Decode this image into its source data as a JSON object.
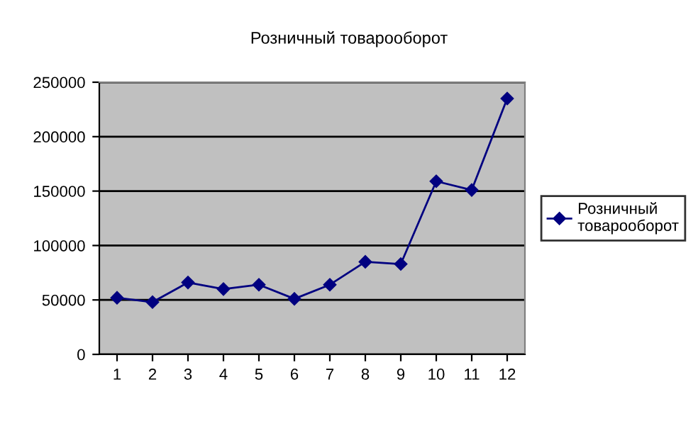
{
  "chart_data": {
    "type": "line",
    "title": "Розничный товарооборот",
    "categories": [
      "1",
      "2",
      "3",
      "4",
      "5",
      "6",
      "7",
      "8",
      "9",
      "10",
      "11",
      "12"
    ],
    "series": [
      {
        "name": "Розничный товарооборот",
        "color": "#000080",
        "values": [
          52000,
          48000,
          66000,
          60000,
          64000,
          51000,
          64000,
          85000,
          83000,
          159000,
          151000,
          235000
        ]
      }
    ],
    "ylim": [
      0,
      250000
    ],
    "yticks": [
      0,
      50000,
      100000,
      150000,
      200000,
      250000
    ],
    "grid": "y",
    "legend": "right",
    "marker": "diamond",
    "line_style": "solid"
  }
}
